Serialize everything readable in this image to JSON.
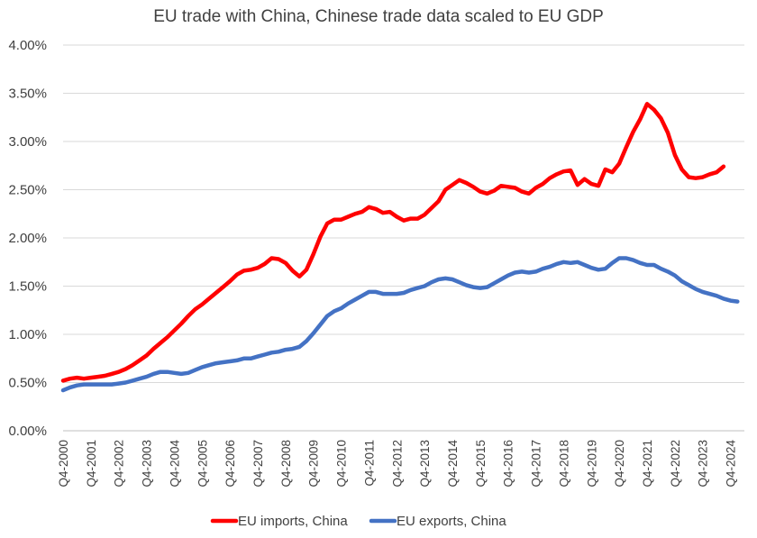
{
  "chart_data": {
    "type": "line",
    "title": "EU trade with China, Chinese trade data scaled to EU GDP",
    "xlabel": "",
    "ylabel": "",
    "ylim": [
      0,
      0.04
    ],
    "y_ticks": [
      0,
      0.005,
      0.01,
      0.015,
      0.02,
      0.025,
      0.03,
      0.035,
      0.04
    ],
    "y_tick_labels": [
      "0.00%",
      "0.50%",
      "1.00%",
      "1.50%",
      "2.00%",
      "2.50%",
      "3.00%",
      "3.50%",
      "4.00%"
    ],
    "x_tick_labels": [
      "Q4-2000",
      "Q4-2001",
      "Q4-2002",
      "Q4-2003",
      "Q4-2004",
      "Q4-2005",
      "Q4-2006",
      "Q4-2007",
      "Q4-2008",
      "Q4-2009",
      "Q4-2010",
      "Q4-2011",
      "Q4-2012",
      "Q4-2013",
      "Q4-2014",
      "Q4-2015",
      "Q4-2016",
      "Q4-2017",
      "Q4-2018",
      "Q4-2019",
      "Q4-2020",
      "Q4-2021",
      "Q4-2022",
      "Q4-2023",
      "Q4-2024"
    ],
    "x_start_year": 2000.75,
    "x_end_year": 2025.25,
    "legend_position": "bottom",
    "grid": true,
    "series": [
      {
        "name": "EU imports, China",
        "color": "#ff0000",
        "points": [
          [
            2000.75,
            0.0052
          ],
          [
            2001.0,
            0.0054
          ],
          [
            2001.25,
            0.0055
          ],
          [
            2001.5,
            0.0054
          ],
          [
            2001.75,
            0.0055
          ],
          [
            2002.0,
            0.0056
          ],
          [
            2002.25,
            0.0057
          ],
          [
            2002.5,
            0.0059
          ],
          [
            2002.75,
            0.0061
          ],
          [
            2003.0,
            0.0064
          ],
          [
            2003.25,
            0.0068
          ],
          [
            2003.5,
            0.0073
          ],
          [
            2003.75,
            0.0078
          ],
          [
            2004.0,
            0.0085
          ],
          [
            2004.25,
            0.0091
          ],
          [
            2004.5,
            0.0097
          ],
          [
            2004.75,
            0.0104
          ],
          [
            2005.0,
            0.0111
          ],
          [
            2005.25,
            0.0119
          ],
          [
            2005.5,
            0.0126
          ],
          [
            2005.75,
            0.0131
          ],
          [
            2006.0,
            0.0137
          ],
          [
            2006.25,
            0.0143
          ],
          [
            2006.5,
            0.0149
          ],
          [
            2006.75,
            0.0155
          ],
          [
            2007.0,
            0.0162
          ],
          [
            2007.25,
            0.0166
          ],
          [
            2007.5,
            0.0167
          ],
          [
            2007.75,
            0.0169
          ],
          [
            2008.0,
            0.0173
          ],
          [
            2008.25,
            0.0179
          ],
          [
            2008.5,
            0.0178
          ],
          [
            2008.75,
            0.0174
          ],
          [
            2009.0,
            0.0166
          ],
          [
            2009.25,
            0.016
          ],
          [
            2009.5,
            0.0167
          ],
          [
            2009.75,
            0.0183
          ],
          [
            2010.0,
            0.0201
          ],
          [
            2010.25,
            0.0215
          ],
          [
            2010.5,
            0.0219
          ],
          [
            2010.75,
            0.0219
          ],
          [
            2011.0,
            0.0222
          ],
          [
            2011.25,
            0.0225
          ],
          [
            2011.5,
            0.0227
          ],
          [
            2011.75,
            0.0232
          ],
          [
            2012.0,
            0.023
          ],
          [
            2012.25,
            0.0226
          ],
          [
            2012.5,
            0.0227
          ],
          [
            2012.75,
            0.0222
          ],
          [
            2013.0,
            0.0218
          ],
          [
            2013.25,
            0.022
          ],
          [
            2013.5,
            0.022
          ],
          [
            2013.75,
            0.0224
          ],
          [
            2014.0,
            0.0231
          ],
          [
            2014.25,
            0.0238
          ],
          [
            2014.5,
            0.025
          ],
          [
            2014.75,
            0.0255
          ],
          [
            2015.0,
            0.026
          ],
          [
            2015.25,
            0.0257
          ],
          [
            2015.5,
            0.0253
          ],
          [
            2015.75,
            0.0248
          ],
          [
            2016.0,
            0.0246
          ],
          [
            2016.25,
            0.0249
          ],
          [
            2016.5,
            0.0254
          ],
          [
            2016.75,
            0.0253
          ],
          [
            2017.0,
            0.0252
          ],
          [
            2017.25,
            0.0248
          ],
          [
            2017.5,
            0.0246
          ],
          [
            2017.75,
            0.0252
          ],
          [
            2018.0,
            0.0256
          ],
          [
            2018.25,
            0.0262
          ],
          [
            2018.5,
            0.0266
          ],
          [
            2018.75,
            0.0269
          ],
          [
            2019.0,
            0.027
          ],
          [
            2019.25,
            0.0255
          ],
          [
            2019.5,
            0.0261
          ],
          [
            2019.75,
            0.0256
          ],
          [
            2020.0,
            0.0254
          ],
          [
            2020.25,
            0.0271
          ],
          [
            2020.5,
            0.0268
          ],
          [
            2020.75,
            0.0277
          ],
          [
            2021.0,
            0.0294
          ],
          [
            2021.25,
            0.031
          ],
          [
            2021.5,
            0.0323
          ],
          [
            2021.75,
            0.0339
          ],
          [
            2022.0,
            0.0333
          ],
          [
            2022.25,
            0.0324
          ],
          [
            2022.5,
            0.0309
          ],
          [
            2022.75,
            0.0286
          ],
          [
            2023.0,
            0.0271
          ],
          [
            2023.25,
            0.0263
          ],
          [
            2023.5,
            0.0262
          ],
          [
            2023.75,
            0.0263
          ],
          [
            2024.0,
            0.0266
          ],
          [
            2024.25,
            0.0268
          ],
          [
            2024.5,
            0.0274
          ]
        ]
      },
      {
        "name": "EU exports, China",
        "color": "#4472c4",
        "points": [
          [
            2000.75,
            0.0042
          ],
          [
            2001.0,
            0.0045
          ],
          [
            2001.25,
            0.0047
          ],
          [
            2001.5,
            0.0048
          ],
          [
            2001.75,
            0.0048
          ],
          [
            2002.0,
            0.0048
          ],
          [
            2002.25,
            0.0048
          ],
          [
            2002.5,
            0.0048
          ],
          [
            2002.75,
            0.0049
          ],
          [
            2003.0,
            0.005
          ],
          [
            2003.25,
            0.0052
          ],
          [
            2003.5,
            0.0054
          ],
          [
            2003.75,
            0.0056
          ],
          [
            2004.0,
            0.0059
          ],
          [
            2004.25,
            0.0061
          ],
          [
            2004.5,
            0.0061
          ],
          [
            2004.75,
            0.006
          ],
          [
            2005.0,
            0.0059
          ],
          [
            2005.25,
            0.006
          ],
          [
            2005.5,
            0.0063
          ],
          [
            2005.75,
            0.0066
          ],
          [
            2006.0,
            0.0068
          ],
          [
            2006.25,
            0.007
          ],
          [
            2006.5,
            0.0071
          ],
          [
            2006.75,
            0.0072
          ],
          [
            2007.0,
            0.0073
          ],
          [
            2007.25,
            0.0075
          ],
          [
            2007.5,
            0.0075
          ],
          [
            2007.75,
            0.0077
          ],
          [
            2008.0,
            0.0079
          ],
          [
            2008.25,
            0.0081
          ],
          [
            2008.5,
            0.0082
          ],
          [
            2008.75,
            0.0084
          ],
          [
            2009.0,
            0.0085
          ],
          [
            2009.25,
            0.0087
          ],
          [
            2009.5,
            0.0093
          ],
          [
            2009.75,
            0.0101
          ],
          [
            2010.0,
            0.011
          ],
          [
            2010.25,
            0.0119
          ],
          [
            2010.5,
            0.0124
          ],
          [
            2010.75,
            0.0127
          ],
          [
            2011.0,
            0.0132
          ],
          [
            2011.25,
            0.0136
          ],
          [
            2011.5,
            0.014
          ],
          [
            2011.75,
            0.0144
          ],
          [
            2012.0,
            0.0144
          ],
          [
            2012.25,
            0.0142
          ],
          [
            2012.5,
            0.0142
          ],
          [
            2012.75,
            0.0142
          ],
          [
            2013.0,
            0.0143
          ],
          [
            2013.25,
            0.0146
          ],
          [
            2013.5,
            0.0148
          ],
          [
            2013.75,
            0.015
          ],
          [
            2014.0,
            0.0154
          ],
          [
            2014.25,
            0.0157
          ],
          [
            2014.5,
            0.0158
          ],
          [
            2014.75,
            0.0157
          ],
          [
            2015.0,
            0.0154
          ],
          [
            2015.25,
            0.0151
          ],
          [
            2015.5,
            0.0149
          ],
          [
            2015.75,
            0.0148
          ],
          [
            2016.0,
            0.0149
          ],
          [
            2016.25,
            0.0153
          ],
          [
            2016.5,
            0.0157
          ],
          [
            2016.75,
            0.0161
          ],
          [
            2017.0,
            0.0164
          ],
          [
            2017.25,
            0.0165
          ],
          [
            2017.5,
            0.0164
          ],
          [
            2017.75,
            0.0165
          ],
          [
            2018.0,
            0.0168
          ],
          [
            2018.25,
            0.017
          ],
          [
            2018.5,
            0.0173
          ],
          [
            2018.75,
            0.0175
          ],
          [
            2019.0,
            0.0174
          ],
          [
            2019.25,
            0.0175
          ],
          [
            2019.5,
            0.0172
          ],
          [
            2019.75,
            0.0169
          ],
          [
            2020.0,
            0.0167
          ],
          [
            2020.25,
            0.0168
          ],
          [
            2020.5,
            0.0174
          ],
          [
            2020.75,
            0.0179
          ],
          [
            2021.0,
            0.0179
          ],
          [
            2021.25,
            0.0177
          ],
          [
            2021.5,
            0.0174
          ],
          [
            2021.75,
            0.0172
          ],
          [
            2022.0,
            0.0172
          ],
          [
            2022.25,
            0.0168
          ],
          [
            2022.5,
            0.0165
          ],
          [
            2022.75,
            0.0161
          ],
          [
            2023.0,
            0.0155
          ],
          [
            2023.25,
            0.0151
          ],
          [
            2023.5,
            0.0147
          ],
          [
            2023.75,
            0.0144
          ],
          [
            2024.0,
            0.0142
          ],
          [
            2024.25,
            0.014
          ],
          [
            2024.5,
            0.0137
          ],
          [
            2024.75,
            0.0135
          ],
          [
            2025.0,
            0.0134
          ]
        ]
      }
    ]
  }
}
